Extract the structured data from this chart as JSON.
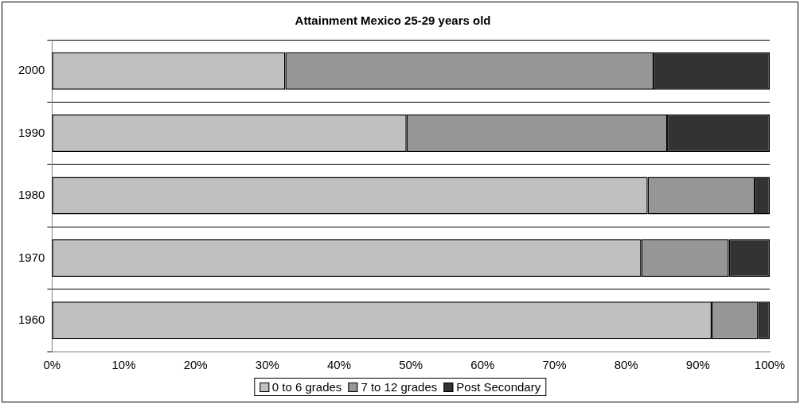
{
  "chart_data": {
    "type": "bar",
    "orientation": "horizontal",
    "stacked": true,
    "title": "Attainment Mexico 25-29 years old",
    "categories": [
      "2000",
      "1990",
      "1980",
      "1970",
      "1960"
    ],
    "series": [
      {
        "name": "0 to 6 grades",
        "color": "#c0c0c0",
        "values": [
          32.5,
          49.4,
          83.0,
          82.1,
          91.9
        ]
      },
      {
        "name": "7 to 12 grades",
        "color": "#969696",
        "values": [
          51.3,
          36.3,
          14.9,
          12.2,
          6.5
        ]
      },
      {
        "name": "Post Secondary",
        "color": "#333333",
        "values": [
          16.2,
          14.3,
          2.1,
          5.7,
          1.6
        ]
      }
    ],
    "xlim": [
      0,
      100
    ],
    "xticks": [
      {
        "value": 0,
        "label": "0%"
      },
      {
        "value": 10,
        "label": "10%"
      },
      {
        "value": 20,
        "label": "20%"
      },
      {
        "value": 30,
        "label": "30%"
      },
      {
        "value": 40,
        "label": "40%"
      },
      {
        "value": 50,
        "label": "50%"
      },
      {
        "value": 60,
        "label": "60%"
      },
      {
        "value": 70,
        "label": "70%"
      },
      {
        "value": 80,
        "label": "80%"
      },
      {
        "value": 90,
        "label": "90%"
      },
      {
        "value": 100,
        "label": "100%"
      }
    ],
    "grid": "y",
    "legend": "bottom"
  }
}
